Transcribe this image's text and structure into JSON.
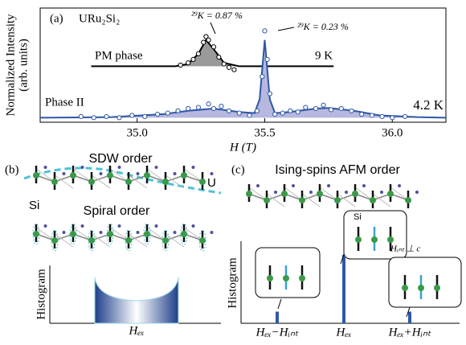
{
  "chart_data": [
    {
      "type": "scatter",
      "panel_label": "(a)",
      "title": "URu₂Si₂",
      "ylabel": [
        "Normalized Intensity",
        "(arb. units)"
      ],
      "xlabel": "H (T)",
      "xlim": [
        34.62,
        36.21
      ],
      "ylim": [
        0,
        1
      ],
      "xticks": [
        {
          "value": 35,
          "label": "35.0"
        },
        35.5,
        {
          "value": 36,
          "label": "36.0"
        }
      ],
      "annotations": [
        "²⁹K = 0.87 %",
        "²⁹K = 0.23 %"
      ],
      "series": [
        {
          "name": "PM phase",
          "temperature": "9 K",
          "color": "#000000",
          "fill": "#9a9a9a",
          "x": [
            35.17,
            35.2,
            35.22,
            35.24,
            35.26,
            35.27,
            35.28,
            35.3,
            35.32,
            35.34,
            35.36,
            35.38
          ],
          "values": [
            0.5,
            0.52,
            0.55,
            0.6,
            0.7,
            0.75,
            0.72,
            0.66,
            0.57,
            0.51,
            0.48,
            0.46
          ],
          "fit_x": [
            34.82,
            35.15,
            35.2,
            35.24,
            35.27,
            35.3,
            35.34,
            35.4,
            35.77
          ],
          "fit_values": [
            0.49,
            0.49,
            0.51,
            0.6,
            0.72,
            0.64,
            0.52,
            0.49,
            0.49
          ]
        },
        {
          "name": "Phase II",
          "temperature": "4.2 K",
          "color": "#2f57a6",
          "fill": "#b7b8e0",
          "x": [
            34.78,
            34.83,
            34.88,
            34.93,
            34.98,
            35.03,
            35.08,
            35.12,
            35.16,
            35.2,
            35.24,
            35.28,
            35.3,
            35.33,
            35.36,
            35.4,
            35.44,
            35.47,
            35.49,
            35.5,
            35.51,
            35.52,
            35.54,
            35.57,
            35.6,
            35.63,
            35.66,
            35.7,
            35.73,
            35.76,
            35.8,
            35.84,
            35.88,
            35.92,
            35.96,
            36.0,
            36.05
          ],
          "values": [
            0.05,
            0.04,
            0.05,
            0.04,
            0.06,
            0.05,
            0.07,
            0.08,
            0.1,
            0.12,
            0.13,
            0.16,
            0.12,
            0.14,
            0.1,
            0.08,
            0.06,
            0.1,
            0.4,
            0.8,
            0.55,
            0.25,
            0.07,
            0.08,
            0.1,
            0.09,
            0.13,
            0.12,
            0.15,
            0.11,
            0.12,
            0.1,
            0.07,
            0.06,
            0.05,
            0.04,
            0.05
          ],
          "fit_x": [
            34.62,
            34.9,
            35.1,
            35.2,
            35.3,
            35.4,
            35.46,
            35.48,
            35.5,
            35.52,
            35.54,
            35.6,
            35.7,
            35.75,
            35.85,
            35.95,
            36.1,
            36.21
          ],
          "fit_values": [
            0.04,
            0.045,
            0.07,
            0.1,
            0.12,
            0.09,
            0.08,
            0.2,
            0.72,
            0.2,
            0.08,
            0.09,
            0.12,
            0.125,
            0.1,
            0.06,
            0.045,
            0.04
          ]
        }
      ]
    },
    {
      "type": "bar",
      "panel_label": "(c)",
      "title": "Ising-spins AFM order",
      "ylabel": "Histogram",
      "categories": [
        "Hₑₓ−Hᵢₙₜ",
        "Hₑₓ",
        "Hₑₓ+Hᵢₙₜ"
      ],
      "values": [
        0.17,
        1,
        0.17
      ],
      "ylim": [
        0,
        1.2
      ],
      "color": "#2f57a6",
      "labels": [
        "Si",
        "Hᵢₙₜ ⊥ c"
      ]
    }
  ],
  "panel_b": {
    "label": "(b)",
    "sdw": "SDW order",
    "u": "U",
    "si": "Si",
    "spiral": "Spiral order",
    "ylabel": "Histogram",
    "xlabel": "Hₑₓ"
  }
}
